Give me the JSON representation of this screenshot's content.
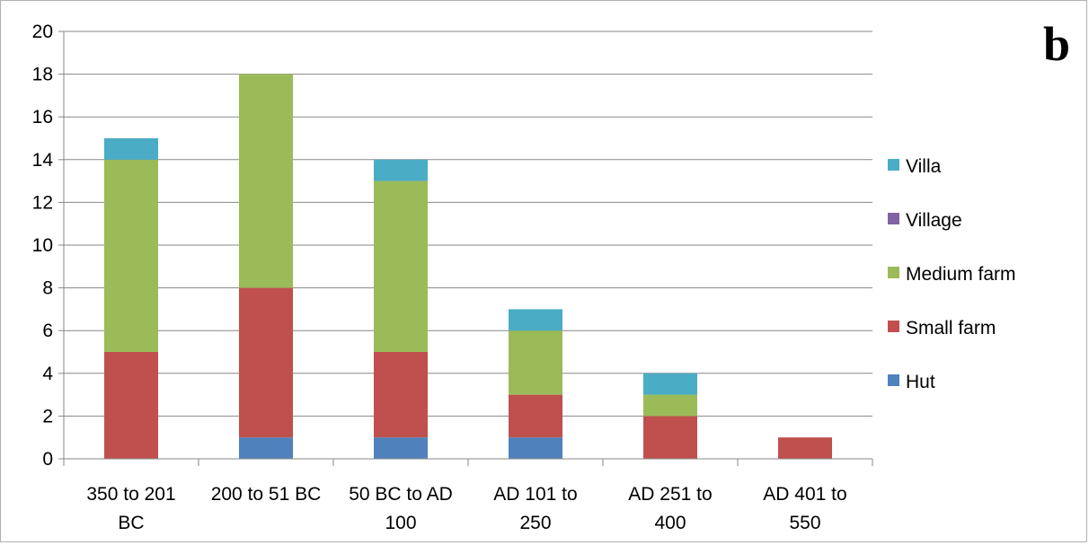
{
  "panel_label": "b",
  "chart_data": {
    "type": "bar",
    "stacked": true,
    "categories": [
      [
        "350 to 201",
        "BC"
      ],
      [
        "200 to 51 BC"
      ],
      [
        "50 BC to AD",
        "100"
      ],
      [
        "AD 101 to",
        "250"
      ],
      [
        "AD 251 to",
        "400"
      ],
      [
        "AD 401 to",
        "550"
      ]
    ],
    "series": [
      {
        "name": "Hut",
        "color": "#4f81bd",
        "values": [
          0,
          1,
          1,
          1,
          0,
          0
        ]
      },
      {
        "name": "Small farm",
        "color": "#c0504d",
        "values": [
          5,
          7,
          4,
          2,
          2,
          1
        ]
      },
      {
        "name": "Medium farm",
        "color": "#9bbb59",
        "values": [
          9,
          10,
          8,
          3,
          1,
          0
        ]
      },
      {
        "name": "Village",
        "color": "#8064a2",
        "values": [
          0,
          0,
          0,
          0,
          0,
          0
        ]
      },
      {
        "name": "Villa",
        "color": "#4bacc6",
        "values": [
          1,
          0,
          1,
          1,
          1,
          0
        ]
      }
    ],
    "legend_order": [
      "Villa",
      "Village",
      "Medium farm",
      "Small farm",
      "Hut"
    ],
    "legend_position": "right",
    "ylim": [
      0,
      20
    ],
    "yticks": [
      0,
      2,
      4,
      6,
      8,
      10,
      12,
      14,
      16,
      18,
      20
    ],
    "grid": true,
    "title": "",
    "xlabel": "",
    "ylabel": ""
  }
}
